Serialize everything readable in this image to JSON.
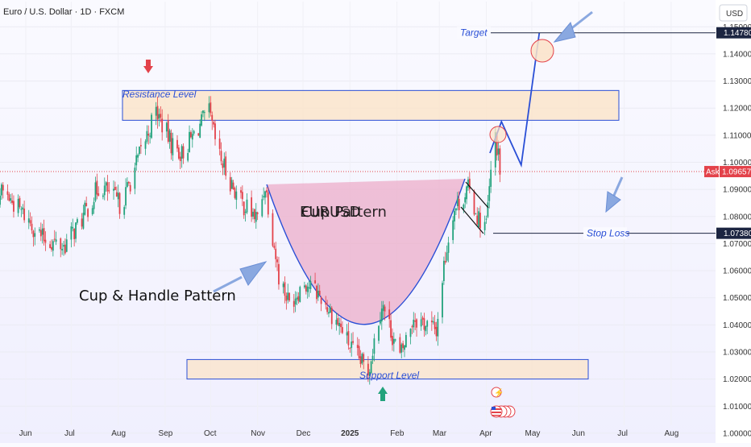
{
  "header": {
    "symbol_title": "Euro / U.S. Dollar · 1D · FXCM",
    "currency_button": "USD"
  },
  "colors": {
    "up": "#22a27c",
    "down": "#e3424a",
    "accent": "#2a4fd6",
    "zone_fill": "#fbe3c8",
    "cup_fill": "#ecabc7",
    "ask_tag": "#e3424a",
    "price_tag": "#1c2541"
  },
  "chart_data": {
    "type": "candlestick",
    "x_ticks": [
      "Jun",
      "Jul",
      "Aug",
      "Sep",
      "Oct",
      "Nov",
      "Dec",
      "2025",
      "Feb",
      "Mar",
      "Apr",
      "May",
      "Jun",
      "Jul",
      "Aug"
    ],
    "y_ticks": [
      "1.00000",
      "1.01000",
      "1.02000",
      "1.03000",
      "1.04000",
      "1.05000",
      "1.06000",
      "1.07000",
      "1.08000",
      "1.09000",
      "1.10000",
      "1.11000",
      "1.12000",
      "1.13000",
      "1.14000",
      "1.15000"
    ],
    "ylim": [
      0.997,
      1.1593
    ],
    "price_path": [
      {
        "date": "2024-05-01",
        "price": 1.086
      },
      {
        "date": "2024-05-17",
        "price": 1.089
      },
      {
        "date": "2024-06-01",
        "price": 1.08
      },
      {
        "date": "2024-06-12",
        "price": 1.072
      },
      {
        "date": "2024-06-26",
        "price": 1.069
      },
      {
        "date": "2024-07-08",
        "price": 1.079
      },
      {
        "date": "2024-07-20",
        "price": 1.092
      },
      {
        "date": "2024-08-03",
        "price": 1.084
      },
      {
        "date": "2024-08-20",
        "price": 1.11
      },
      {
        "date": "2024-08-26",
        "price": 1.119
      },
      {
        "date": "2024-09-05",
        "price": 1.107
      },
      {
        "date": "2024-09-12",
        "price": 1.103
      },
      {
        "date": "2024-09-23",
        "price": 1.113
      },
      {
        "date": "2024-09-30",
        "price": 1.118
      },
      {
        "date": "2024-10-06",
        "price": 1.103
      },
      {
        "date": "2024-10-20",
        "price": 1.086
      },
      {
        "date": "2024-11-01",
        "price": 1.079
      },
      {
        "date": "2024-11-06",
        "price": 1.092
      },
      {
        "date": "2024-11-15",
        "price": 1.058
      },
      {
        "date": "2024-11-22",
        "price": 1.048
      },
      {
        "date": "2024-12-02",
        "price": 1.056
      },
      {
        "date": "2024-12-12",
        "price": 1.051
      },
      {
        "date": "2024-12-25",
        "price": 1.04
      },
      {
        "date": "2025-01-03",
        "price": 1.03
      },
      {
        "date": "2025-01-13",
        "price": 1.023
      },
      {
        "date": "2025-01-22",
        "price": 1.048
      },
      {
        "date": "2025-02-03",
        "price": 1.028
      },
      {
        "date": "2025-02-12",
        "price": 1.043
      },
      {
        "date": "2025-02-27",
        "price": 1.038
      },
      {
        "date": "2025-03-04",
        "price": 1.062
      },
      {
        "date": "2025-03-10",
        "price": 1.082
      },
      {
        "date": "2025-03-20",
        "price": 1.09
      },
      {
        "date": "2025-03-27",
        "price": 1.079
      },
      {
        "date": "2025-04-01",
        "price": 1.077
      },
      {
        "date": "2025-04-03",
        "price": 1.09
      },
      {
        "date": "2025-04-07",
        "price": 1.11
      },
      {
        "date": "2025-04-10",
        "price": 1.097
      }
    ],
    "resistance_zone": [
      1.1155,
      1.1265
    ],
    "support_zone": [
      1.02,
      1.0272
    ],
    "projection": [
      {
        "date": "2025-04-11",
        "price": 1.115
      },
      {
        "date": "2025-04-24",
        "price": 1.099
      },
      {
        "date": "2025-05-06",
        "price": 1.1478
      }
    ],
    "target_price": "1.14780",
    "stop_loss_price": "1.07380",
    "ask_price": "1.09657",
    "ask_label": "Ask"
  },
  "annotations": {
    "resistance": "Resistance Level",
    "support": "Support Level",
    "target": "Target",
    "stop_loss": "Stop Loss",
    "pattern": "Cup & Handle Pattern",
    "center_label_1": "EURUSD",
    "center_label_2": "Cup Pattern"
  }
}
